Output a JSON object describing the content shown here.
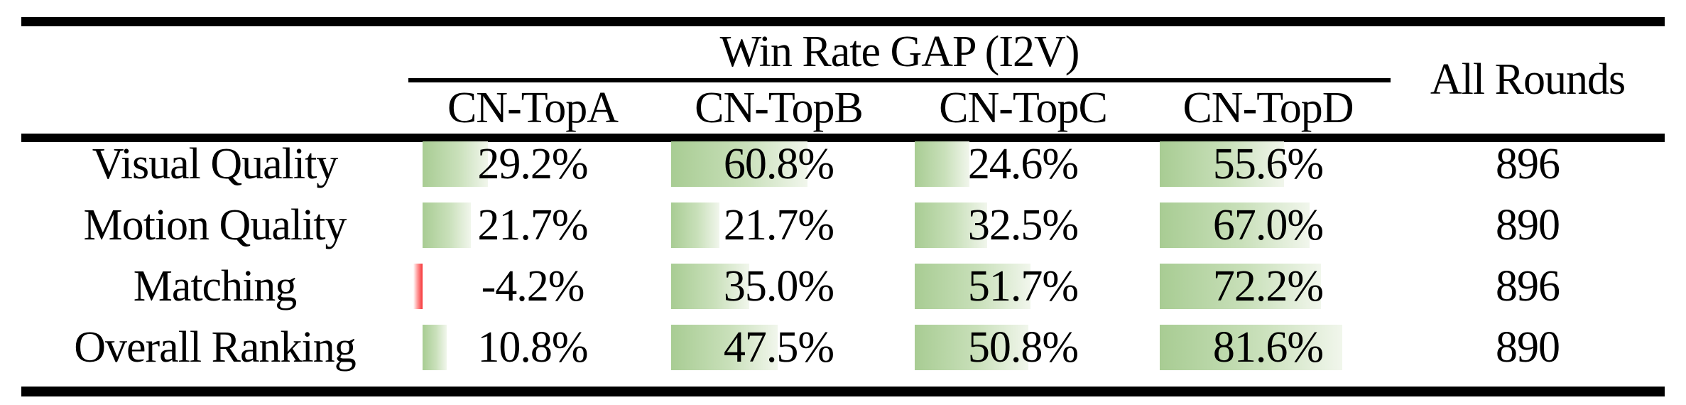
{
  "table": {
    "group_header": "Win Rate GAP (I2V)",
    "all_rounds_header": "All Rounds",
    "columns": [
      "CN-TopA",
      "CN-TopB",
      "CN-TopC",
      "CN-TopD"
    ],
    "rows": [
      {
        "label": "Visual Quality",
        "values": [
          "29.2%",
          "60.8%",
          "24.6%",
          "55.6%"
        ],
        "numeric": [
          29.2,
          60.8,
          24.6,
          55.6
        ],
        "all_rounds": "896"
      },
      {
        "label": "Motion Quality",
        "values": [
          "21.7%",
          "21.7%",
          "32.5%",
          "67.0%"
        ],
        "numeric": [
          21.7,
          21.7,
          32.5,
          67.0
        ],
        "all_rounds": "890"
      },
      {
        "label": "Matching",
        "values": [
          "-4.2%",
          "35.0%",
          "51.7%",
          "72.2%"
        ],
        "numeric": [
          -4.2,
          35.0,
          51.7,
          72.2
        ],
        "all_rounds": "896"
      },
      {
        "label": "Overall Ranking",
        "values": [
          "10.8%",
          "47.5%",
          "50.8%",
          "81.6%"
        ],
        "numeric": [
          10.8,
          47.5,
          50.8,
          81.6
        ],
        "all_rounds": "890"
      }
    ],
    "colors": {
      "bar_positive": "#a8cc93",
      "bar_positive_fade": "#f1f6ec",
      "bar_negative": "#f63538",
      "rule": "#000000",
      "text": "#000000"
    }
  }
}
